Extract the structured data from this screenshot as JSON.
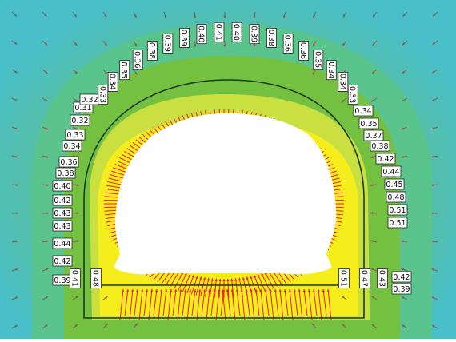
{
  "colors": {
    "outer": "#48bfc9",
    "zone_mid": "#5bc48a",
    "zone_inner": "#74c142",
    "zone_high": "#d9e63a",
    "zone_peak": "#f6ee1c",
    "opening": "#ffffff",
    "vector_high": "#ee1c1c",
    "vector_low": "#8a5a4a",
    "lining": "#1c3a1c"
  },
  "left_labels": [
    "0.39",
    "0.42",
    "0.44",
    "0.43",
    "0.43",
    "0.42",
    "0.40",
    "0.38",
    "0.36",
    "0.34",
    "0.33",
    "0.32",
    "0.31",
    "0.32"
  ],
  "top_labels": [
    "0.33",
    "0.34",
    "0.35",
    "0.36",
    "0.38",
    "0.39",
    "0.39",
    "0.40",
    "0.41",
    "0.40",
    "0.39",
    "0.38",
    "0.36",
    "0.36",
    "0.35",
    "0.34",
    "0.34",
    "0.33"
  ],
  "right_labels": [
    "0.34",
    "0.35",
    "0.37",
    "0.38",
    "0.42",
    "0.44",
    "0.45",
    "0.48",
    "0.51",
    "0.51"
  ],
  "bottom_labels": {
    "left_a": "0.41",
    "left_b": "0.48",
    "right_a": "0.51",
    "right_b": "0.47",
    "right_c": "0.43",
    "far_right_top": "0.42",
    "far_right_bottom": "0.39"
  }
}
